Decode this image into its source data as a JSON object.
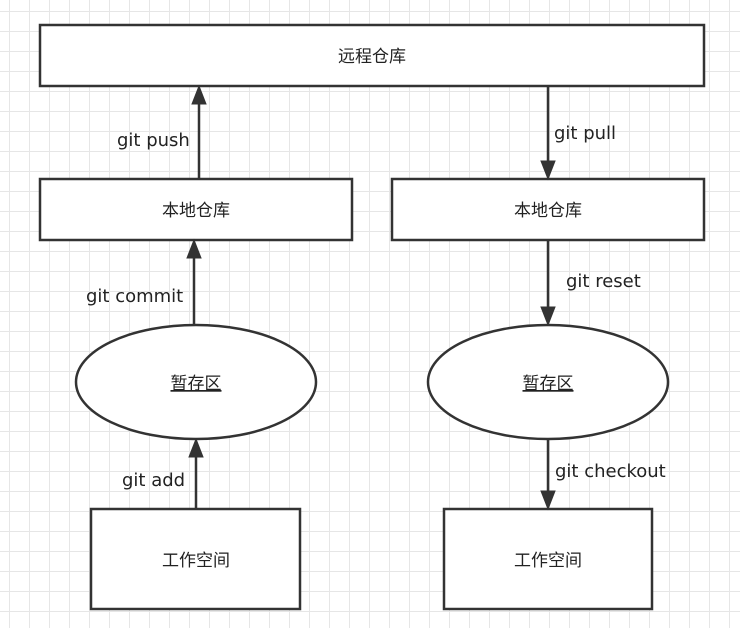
{
  "nodes": {
    "remote": "远程仓库",
    "local_left": "本地仓库",
    "local_right": "本地仓库",
    "stage_left": "暂存区",
    "stage_right": "暂存区",
    "work_left": "工作空间",
    "work_right": "工作空间"
  },
  "edges": {
    "push": "git push",
    "pull": "git pull",
    "commit": "git commit",
    "reset": "git reset",
    "add": "git add",
    "checkout": "git checkout"
  }
}
